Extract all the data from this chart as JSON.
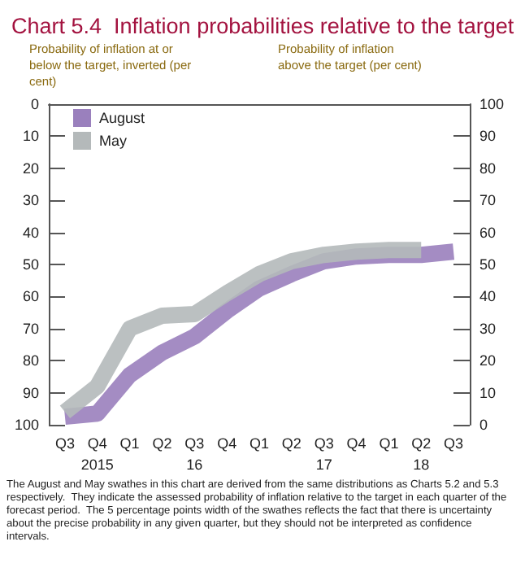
{
  "chart_data": {
    "type": "line",
    "title": "Chart 5.4  Inflation probabilities relative to the target",
    "ylabel": "Probability of inflation at or below the target, inverted (per cent)",
    "y2label": "Probability of inflation above the target (per cent)",
    "categories": [
      "Q3",
      "Q4\n2015",
      "Q1",
      "Q2",
      "Q3\n16",
      "Q4",
      "Q1",
      "Q2",
      "Q3\n17",
      "Q4",
      "Q1",
      "Q2\n18",
      "Q3"
    ],
    "series": [
      {
        "name": "August",
        "color": "#9a80bd",
        "values": [
          97.5,
          96.5,
          84.5,
          77.5,
          72.5,
          64.5,
          57.5,
          53,
          49,
          47.5,
          47,
          47,
          46
        ]
      },
      {
        "name": "May",
        "color": "#b4b9ba",
        "values": [
          96,
          88,
          70,
          66,
          65.5,
          59,
          53,
          49,
          47,
          46,
          45.5,
          45.5,
          null
        ]
      }
    ],
    "ylim": [
      100,
      0
    ],
    "yticks": [
      0,
      10,
      20,
      30,
      40,
      50,
      60,
      70,
      80,
      90,
      100
    ],
    "y2lim": [
      0,
      100
    ],
    "y2ticks": [
      0,
      10,
      20,
      30,
      40,
      50,
      60,
      70,
      80,
      90,
      100
    ],
    "grid": false,
    "legend": "top left",
    "marker": "none",
    "line_style": "solid",
    "annotations": [
      "The August and May swathes in this chart are derived from the same distributions as Charts 5.2 and 5.3 respectively.  They indicate the assessed probability of inflation relative to the target in each quarter of the forecast period.  The 5 percentage points width of the swathes reflects the fact that there is uncertainty about the precise probability in any given quarter, but they should not be interpreted as confidence intervals."
    ]
  }
}
